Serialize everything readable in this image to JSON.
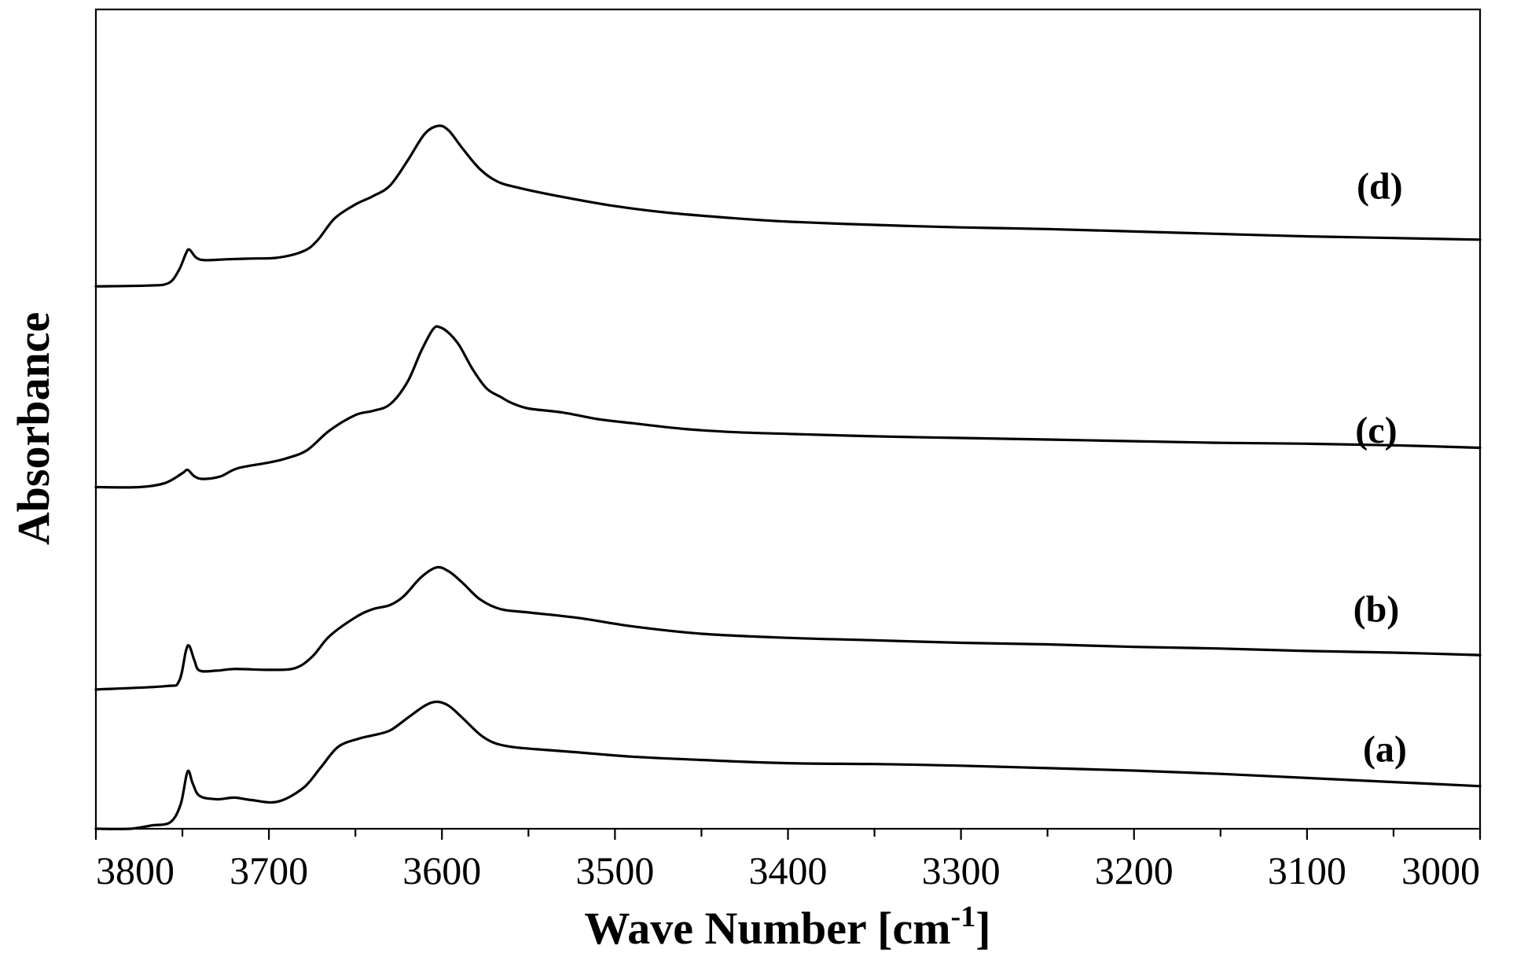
{
  "chart_data": {
    "type": "line",
    "xlabel": "Wave Number [cm",
    "xlabel_sup": "-1",
    "xlabel_end": "]",
    "ylabel": "Absorbance",
    "xlim": [
      3800,
      3000
    ],
    "x_reversed": true,
    "x_ticks": [
      3800,
      3700,
      3600,
      3500,
      3400,
      3300,
      3200,
      3100,
      3000
    ],
    "y_ticks": [],
    "grid": false,
    "legend": "none",
    "ylim": [
      0,
      10
    ],
    "series": [
      {
        "name": "(a)",
        "label": "(a)",
        "label_x": 3055,
        "label_y": 0.82,
        "points": [
          [
            3800,
            0
          ],
          [
            3780,
            0
          ],
          [
            3768,
            0.04
          ],
          [
            3757,
            0.08
          ],
          [
            3751,
            0.3
          ],
          [
            3747,
            0.7
          ],
          [
            3744,
            0.55
          ],
          [
            3740,
            0.4
          ],
          [
            3730,
            0.36
          ],
          [
            3720,
            0.38
          ],
          [
            3710,
            0.35
          ],
          [
            3695,
            0.33
          ],
          [
            3680,
            0.5
          ],
          [
            3670,
            0.75
          ],
          [
            3660,
            1.0
          ],
          [
            3648,
            1.1
          ],
          [
            3640,
            1.14
          ],
          [
            3630,
            1.2
          ],
          [
            3620,
            1.35
          ],
          [
            3610,
            1.5
          ],
          [
            3603,
            1.55
          ],
          [
            3596,
            1.5
          ],
          [
            3588,
            1.35
          ],
          [
            3578,
            1.15
          ],
          [
            3570,
            1.05
          ],
          [
            3560,
            1.0
          ],
          [
            3545,
            0.97
          ],
          [
            3520,
            0.93
          ],
          [
            3490,
            0.88
          ],
          [
            3450,
            0.84
          ],
          [
            3400,
            0.8
          ],
          [
            3350,
            0.79
          ],
          [
            3300,
            0.77
          ],
          [
            3250,
            0.74
          ],
          [
            3200,
            0.71
          ],
          [
            3150,
            0.67
          ],
          [
            3100,
            0.62
          ],
          [
            3050,
            0.57
          ],
          [
            3000,
            0.52
          ]
        ]
      },
      {
        "name": "(b)",
        "label": "(b)",
        "label_x": 3060,
        "label_y": 2.53,
        "points": [
          [
            3800,
            1.7
          ],
          [
            3760,
            1.74
          ],
          [
            3752,
            1.8
          ],
          [
            3748,
            2.17
          ],
          [
            3746,
            2.23
          ],
          [
            3743,
            2.05
          ],
          [
            3740,
            1.93
          ],
          [
            3730,
            1.93
          ],
          [
            3720,
            1.95
          ],
          [
            3700,
            1.94
          ],
          [
            3685,
            1.96
          ],
          [
            3675,
            2.1
          ],
          [
            3665,
            2.35
          ],
          [
            3650,
            2.58
          ],
          [
            3640,
            2.68
          ],
          [
            3630,
            2.73
          ],
          [
            3622,
            2.84
          ],
          [
            3612,
            3.07
          ],
          [
            3603,
            3.19
          ],
          [
            3596,
            3.14
          ],
          [
            3588,
            3.0
          ],
          [
            3578,
            2.8
          ],
          [
            3566,
            2.68
          ],
          [
            3550,
            2.64
          ],
          [
            3520,
            2.57
          ],
          [
            3490,
            2.47
          ],
          [
            3450,
            2.38
          ],
          [
            3400,
            2.33
          ],
          [
            3350,
            2.3
          ],
          [
            3300,
            2.27
          ],
          [
            3250,
            2.25
          ],
          [
            3200,
            2.22
          ],
          [
            3150,
            2.2
          ],
          [
            3100,
            2.17
          ],
          [
            3050,
            2.15
          ],
          [
            3000,
            2.12
          ]
        ]
      },
      {
        "name": "(c)",
        "label": "(c)",
        "label_x": 3060,
        "label_y": 4.71,
        "points": [
          [
            3800,
            4.17
          ],
          [
            3775,
            4.17
          ],
          [
            3760,
            4.22
          ],
          [
            3750,
            4.34
          ],
          [
            3747,
            4.38
          ],
          [
            3743,
            4.3
          ],
          [
            3738,
            4.27
          ],
          [
            3728,
            4.3
          ],
          [
            3718,
            4.4
          ],
          [
            3700,
            4.47
          ],
          [
            3690,
            4.52
          ],
          [
            3678,
            4.62
          ],
          [
            3665,
            4.86
          ],
          [
            3650,
            5.05
          ],
          [
            3640,
            5.1
          ],
          [
            3630,
            5.18
          ],
          [
            3620,
            5.45
          ],
          [
            3612,
            5.83
          ],
          [
            3605,
            6.1
          ],
          [
            3601,
            6.12
          ],
          [
            3596,
            6.05
          ],
          [
            3590,
            5.9
          ],
          [
            3582,
            5.6
          ],
          [
            3574,
            5.37
          ],
          [
            3566,
            5.27
          ],
          [
            3560,
            5.2
          ],
          [
            3550,
            5.13
          ],
          [
            3530,
            5.08
          ],
          [
            3510,
            5.0
          ],
          [
            3490,
            4.95
          ],
          [
            3460,
            4.88
          ],
          [
            3430,
            4.84
          ],
          [
            3400,
            4.82
          ],
          [
            3350,
            4.79
          ],
          [
            3300,
            4.77
          ],
          [
            3250,
            4.75
          ],
          [
            3200,
            4.73
          ],
          [
            3150,
            4.71
          ],
          [
            3100,
            4.7
          ],
          [
            3050,
            4.68
          ],
          [
            3000,
            4.65
          ]
        ]
      },
      {
        "name": "(d)",
        "label": "(d)",
        "label_x": 3058,
        "label_y": 7.69,
        "points": [
          [
            3800,
            6.62
          ],
          [
            3770,
            6.63
          ],
          [
            3758,
            6.66
          ],
          [
            3752,
            6.82
          ],
          [
            3748,
            7.02
          ],
          [
            3746,
            7.07
          ],
          [
            3742,
            6.97
          ],
          [
            3737,
            6.94
          ],
          [
            3725,
            6.95
          ],
          [
            3710,
            6.96
          ],
          [
            3695,
            6.97
          ],
          [
            3680,
            7.05
          ],
          [
            3672,
            7.18
          ],
          [
            3662,
            7.45
          ],
          [
            3650,
            7.62
          ],
          [
            3640,
            7.72
          ],
          [
            3630,
            7.85
          ],
          [
            3620,
            8.15
          ],
          [
            3610,
            8.48
          ],
          [
            3602,
            8.58
          ],
          [
            3596,
            8.52
          ],
          [
            3588,
            8.3
          ],
          [
            3578,
            8.05
          ],
          [
            3568,
            7.9
          ],
          [
            3555,
            7.82
          ],
          [
            3530,
            7.71
          ],
          [
            3500,
            7.6
          ],
          [
            3470,
            7.52
          ],
          [
            3430,
            7.45
          ],
          [
            3400,
            7.41
          ],
          [
            3350,
            7.37
          ],
          [
            3300,
            7.34
          ],
          [
            3250,
            7.32
          ],
          [
            3200,
            7.29
          ],
          [
            3150,
            7.26
          ],
          [
            3100,
            7.23
          ],
          [
            3050,
            7.21
          ],
          [
            3000,
            7.19
          ]
        ]
      }
    ]
  }
}
